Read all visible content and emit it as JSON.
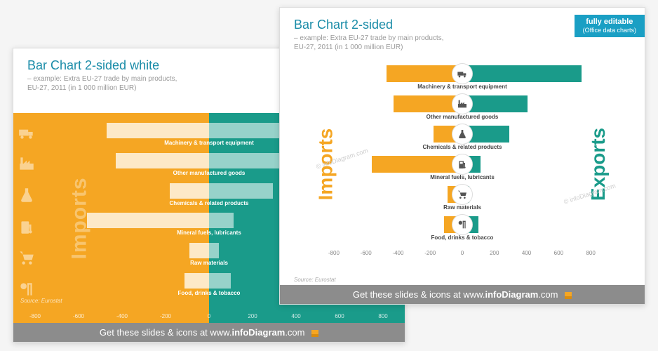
{
  "back": {
    "title": "Bar Chart 2-sided white",
    "subtitle_l1": "– example: Extra EU-27 trade by main products,",
    "subtitle_l2": "EU-27, 2011 (in 1 000 million EUR)",
    "imports_label": "Imports",
    "source": "Source: Eurostat",
    "axis": [
      "-800",
      "-600",
      "-400",
      "-200",
      "0",
      "200",
      "400",
      "600",
      "800"
    ],
    "xmax": 800,
    "rows": [
      {
        "label": "Machinery  & transport equipment",
        "imp": 420,
        "exp": 660,
        "icon": "truck"
      },
      {
        "label": "Other manufactured goods",
        "imp": 380,
        "exp": 360,
        "icon": "factory"
      },
      {
        "label": "Chemicals & related products",
        "imp": 160,
        "exp": 260,
        "icon": "flask"
      },
      {
        "label": "Mineral fuels, lubricants",
        "imp": 500,
        "exp": 100,
        "icon": "fuel"
      },
      {
        "label": "Raw materials",
        "imp": 80,
        "exp": 40,
        "icon": "cart"
      },
      {
        "label": "Food, drinks & tobacco",
        "imp": 100,
        "exp": 90,
        "icon": "food"
      }
    ]
  },
  "front": {
    "title": "Bar Chart 2-sided",
    "subtitle_l1": "– example: Extra EU-27 trade by main products,",
    "subtitle_l2": "EU-27, 2011 (in 1 000 million EUR)",
    "badge": "fully editable",
    "badge_sub": "(Office data charts)",
    "imports_label": "Imports",
    "exports_label": "Exports",
    "source": "Source: Eurostat",
    "axis": [
      "-800",
      "-600",
      "-400",
      "-200",
      "0",
      "200",
      "400",
      "600",
      "800"
    ],
    "xmax": 800,
    "rows": [
      {
        "label": "Machinery  & transport equipment",
        "imp": 420,
        "exp": 660,
        "icon": "truck"
      },
      {
        "label": "Other manufactured goods",
        "imp": 380,
        "exp": 360,
        "icon": "factory"
      },
      {
        "label": "Chemicals & related products",
        "imp": 160,
        "exp": 260,
        "icon": "flask"
      },
      {
        "label": "Mineral fuels, lubricants",
        "imp": 500,
        "exp": 100,
        "icon": "fuel"
      },
      {
        "label": "Raw materials",
        "imp": 80,
        "exp": 40,
        "icon": "cart"
      },
      {
        "label": "Food, drinks & tobacco",
        "imp": 100,
        "exp": 90,
        "icon": "food"
      }
    ]
  },
  "footer": {
    "text_pre": "Get these slides & icons at www.",
    "brand": "infoDiagram",
    "text_post": ".com"
  },
  "colors": {
    "orange": "#f5a623",
    "teal": "#1a9b8a",
    "blue": "#1a9fc4",
    "title": "#1a8ca8",
    "grey": "#8c8c8c"
  },
  "watermark": "© infoDiagram.com"
}
